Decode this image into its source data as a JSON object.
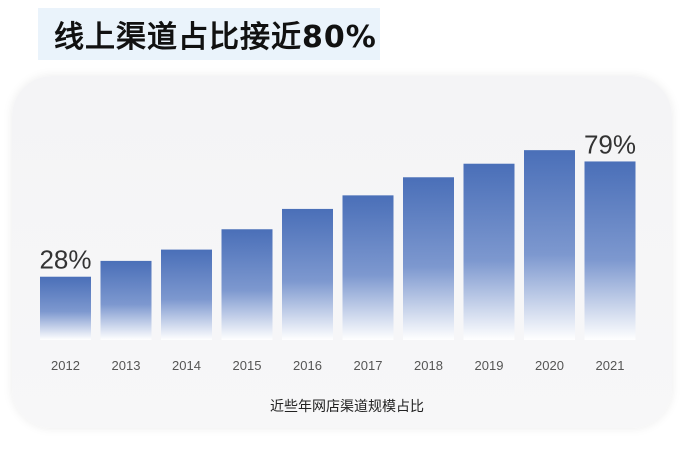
{
  "title": "线上渠道占比接近80%",
  "chart_data": {
    "type": "bar",
    "categories": [
      "2012",
      "2013",
      "2014",
      "2015",
      "2016",
      "2017",
      "2018",
      "2019",
      "2020",
      "2021"
    ],
    "values": [
      28,
      35,
      40,
      49,
      58,
      64,
      72,
      78,
      84,
      79
    ],
    "data_labels": [
      {
        "index": 0,
        "text": "28%"
      },
      {
        "index": 9,
        "text": "79%"
      }
    ],
    "caption": "近些年网店渠道规模占比",
    "xlabel": "",
    "ylabel": "",
    "ylim": [
      0,
      100
    ],
    "grid": false,
    "bar_color_top": "#4a6fb8",
    "bar_color_bottom": "#ffffff"
  }
}
